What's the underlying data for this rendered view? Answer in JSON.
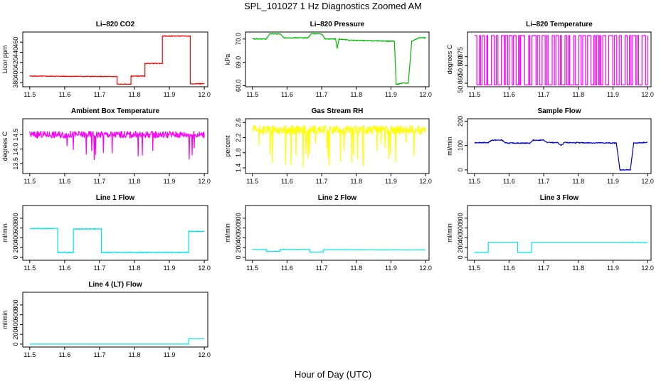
{
  "figure": {
    "title": "SPL_101027  1 Hz Diagnostics Zoomed AM",
    "xlabel": "Hour of Day (UTC)"
  },
  "chart_data": [
    {
      "id": "co2",
      "type": "line",
      "title": "Li–820 CO2",
      "ylabel": "Licor ppm",
      "color": "#ff0000",
      "xlim": [
        11.48,
        12.01
      ],
      "ylim": [
        372,
        480
      ],
      "xticks": [
        11.5,
        11.6,
        11.7,
        11.8,
        11.9,
        12.0
      ],
      "yticks": [
        "380",
        "400",
        "420",
        "440",
        "460"
      ],
      "ytick_values": [
        380,
        400,
        420,
        440,
        460
      ],
      "noise": 0.8,
      "series": [
        {
          "points": [
            [
              11.5,
              393
            ],
            [
              11.75,
              392
            ],
            [
              11.75,
              377
            ],
            [
              11.79,
              377
            ],
            [
              11.79,
              393
            ],
            [
              11.83,
              393
            ],
            [
              11.83,
              418
            ],
            [
              11.88,
              418
            ],
            [
              11.88,
              472
            ],
            [
              11.96,
              472
            ],
            [
              11.96,
              378
            ],
            [
              12.0,
              378
            ]
          ]
        }
      ]
    },
    {
      "id": "pressure",
      "type": "line",
      "title": "Li–820 Pressure",
      "ylabel": "kPa",
      "color": "#00bb00",
      "xlim": [
        11.48,
        12.01
      ],
      "ylim": [
        67.95,
        70.3
      ],
      "xticks": [
        11.5,
        11.6,
        11.7,
        11.8,
        11.9,
        12.0
      ],
      "yticks": [
        "68.0",
        "69.0",
        "70.0"
      ],
      "ytick_values": [
        68.0,
        69.0,
        70.0
      ],
      "noise": 0.02,
      "series": [
        {
          "points": [
            [
              11.5,
              70.0
            ],
            [
              11.54,
              70.0
            ],
            [
              11.55,
              70.22
            ],
            [
              11.58,
              70.22
            ],
            [
              11.59,
              70.05
            ],
            [
              11.66,
              70.05
            ],
            [
              11.67,
              70.22
            ],
            [
              11.7,
              70.22
            ],
            [
              11.71,
              70.0
            ],
            [
              11.74,
              70.0
            ],
            [
              11.745,
              69.6
            ],
            [
              11.75,
              70.0
            ],
            [
              11.78,
              69.95
            ],
            [
              11.91,
              69.9
            ],
            [
              11.915,
              68.05
            ],
            [
              11.93,
              68.1
            ],
            [
              11.95,
              68.1
            ],
            [
              11.96,
              69.9
            ],
            [
              11.98,
              70.05
            ],
            [
              12.0,
              70.05
            ]
          ]
        }
      ]
    },
    {
      "id": "temperature",
      "type": "line",
      "title": "Li–820 Temperature",
      "ylabel": "degrees C",
      "color": "#ff00ff",
      "xlim": [
        11.48,
        12.01
      ],
      "ylim": [
        50.858,
        50.889
      ],
      "xticks": [
        11.5,
        11.6,
        11.7,
        11.8,
        11.9,
        12.0
      ],
      "yticks": [
        "50.860",
        "50.870",
        "50.875"
      ],
      "ytick_values": [
        50.86,
        50.87,
        50.875
      ],
      "toggle": {
        "high": 50.887,
        "low": 50.859,
        "start": 11.5,
        "end": 12.0,
        "seed": 7
      },
      "series": []
    },
    {
      "id": "ambient",
      "type": "line",
      "title": "Ambient Box Temperature",
      "ylabel": "degrees C",
      "color": "#ff00ff",
      "xlim": [
        11.48,
        12.01
      ],
      "ylim": [
        13.15,
        15.05
      ],
      "xticks": [
        11.5,
        11.6,
        11.7,
        11.8,
        11.9,
        12.0
      ],
      "yticks": [
        "13.5",
        "14.0",
        "14.5"
      ],
      "ytick_values": [
        13.5,
        14.0,
        14.5
      ],
      "noise": 0.12,
      "spikes": {
        "count": 14,
        "depth": 0.9,
        "seed": 3
      },
      "series": [
        {
          "points": [
            [
              11.5,
              14.5
            ],
            [
              12.0,
              14.5
            ]
          ]
        }
      ]
    },
    {
      "id": "rh",
      "type": "line",
      "title": "Gas Stream RH",
      "ylabel": "percent",
      "color": "#ffff00",
      "xlim": [
        11.48,
        12.01
      ],
      "ylim": [
        1.25,
        2.7
      ],
      "xticks": [
        11.5,
        11.6,
        11.7,
        11.8,
        11.9,
        12.0
      ],
      "yticks": [
        "1.4",
        "1.8",
        "2.2",
        "2.6"
      ],
      "ytick_values": [
        1.4,
        1.8,
        2.2,
        2.6
      ],
      "noise": 0.12,
      "spikes": {
        "count": 30,
        "depth": 0.9,
        "seed": 11
      },
      "series": [
        {
          "points": [
            [
              11.5,
              2.4
            ],
            [
              12.0,
              2.4
            ]
          ]
        }
      ]
    },
    {
      "id": "sample",
      "type": "line",
      "title": "Sample Flow",
      "ylabel": "ml/min",
      "color": "#0000cc",
      "xlim": [
        11.48,
        12.01
      ],
      "ylim": [
        -15,
        210
      ],
      "xticks": [
        11.5,
        11.6,
        11.7,
        11.8,
        11.9,
        12.0
      ],
      "yticks": [
        "0",
        "100",
        "200"
      ],
      "ytick_values": [
        0,
        100,
        200
      ],
      "noise": 2,
      "series": [
        {
          "points": [
            [
              11.5,
              112
            ],
            [
              11.54,
              112
            ],
            [
              11.55,
              122
            ],
            [
              11.58,
              122
            ],
            [
              11.59,
              110
            ],
            [
              11.66,
              110
            ],
            [
              11.67,
              122
            ],
            [
              11.7,
              122
            ],
            [
              11.71,
              112
            ],
            [
              11.74,
              112
            ],
            [
              11.75,
              100
            ],
            [
              11.76,
              112
            ],
            [
              11.91,
              110
            ],
            [
              11.92,
              0
            ],
            [
              11.95,
              0
            ],
            [
              11.96,
              110
            ],
            [
              12.0,
              113
            ]
          ]
        }
      ]
    },
    {
      "id": "line1",
      "type": "line",
      "title": "Line 1 Flow",
      "ylabel": "ml/min",
      "color": "#00e5ee",
      "xlim": [
        11.48,
        12.01
      ],
      "ylim": [
        -60,
        1060
      ],
      "xticks": [
        11.5,
        11.6,
        11.7,
        11.8,
        11.9,
        12.0
      ],
      "yticks": [
        "0",
        "200",
        "400",
        "600",
        "800"
      ],
      "ytick_values": [
        0,
        200,
        400,
        600,
        800
      ],
      "noise": 10,
      "series": [
        {
          "points": [
            [
              11.5,
              590
            ],
            [
              11.58,
              590
            ],
            [
              11.58,
              100
            ],
            [
              11.625,
              100
            ],
            [
              11.625,
              580
            ],
            [
              11.705,
              580
            ],
            [
              11.705,
              100
            ],
            [
              11.955,
              100
            ],
            [
              11.955,
              530
            ],
            [
              12.0,
              530
            ]
          ]
        }
      ]
    },
    {
      "id": "line2",
      "type": "line",
      "title": "Line 2 Flow",
      "ylabel": "ml/min",
      "color": "#00e5ee",
      "xlim": [
        11.48,
        12.01
      ],
      "ylim": [
        -60,
        1060
      ],
      "xticks": [
        11.5,
        11.6,
        11.7,
        11.8,
        11.9,
        12.0
      ],
      "yticks": [
        "0",
        "200",
        "400",
        "600",
        "800"
      ],
      "ytick_values": [
        0,
        200,
        400,
        600,
        800
      ],
      "noise": 4,
      "series": [
        {
          "points": [
            [
              11.5,
              160
            ],
            [
              11.54,
              160
            ],
            [
              11.54,
              120
            ],
            [
              11.58,
              120
            ],
            [
              11.58,
              160
            ],
            [
              11.665,
              160
            ],
            [
              11.665,
              110
            ],
            [
              11.705,
              110
            ],
            [
              11.705,
              155
            ],
            [
              12.0,
              150
            ]
          ]
        }
      ]
    },
    {
      "id": "line3",
      "type": "line",
      "title": "Line 3 Flow",
      "ylabel": "ml/min",
      "color": "#00e5ee",
      "xlim": [
        11.48,
        12.01
      ],
      "ylim": [
        -60,
        1060
      ],
      "xticks": [
        11.5,
        11.6,
        11.7,
        11.8,
        11.9,
        12.0
      ],
      "yticks": [
        "0",
        "200",
        "400",
        "600",
        "800"
      ],
      "ytick_values": [
        0,
        200,
        400,
        600,
        800
      ],
      "noise": 0,
      "series": [
        {
          "points": [
            [
              11.5,
              100
            ],
            [
              11.54,
              100
            ],
            [
              11.54,
              310
            ],
            [
              11.625,
              310
            ],
            [
              11.625,
              100
            ],
            [
              11.665,
              100
            ],
            [
              11.665,
              310
            ],
            [
              11.955,
              310
            ],
            [
              11.955,
              300
            ],
            [
              12.0,
              300
            ]
          ]
        }
      ]
    },
    {
      "id": "line4",
      "type": "line",
      "title": "Line 4 (LT) Flow",
      "ylabel": "ml/min",
      "color": "#00e5ee",
      "xlim": [
        11.48,
        12.01
      ],
      "ylim": [
        -60,
        1060
      ],
      "xticks": [
        11.5,
        11.6,
        11.7,
        11.8,
        11.9,
        12.0
      ],
      "yticks": [
        "0",
        "200",
        "400",
        "600",
        "800"
      ],
      "ytick_values": [
        0,
        200,
        400,
        600,
        800
      ],
      "noise": 0,
      "series": [
        {
          "points": [
            [
              11.5,
              0
            ],
            [
              11.955,
              0
            ],
            [
              11.955,
              110
            ],
            [
              12.0,
              110
            ]
          ]
        }
      ]
    }
  ]
}
